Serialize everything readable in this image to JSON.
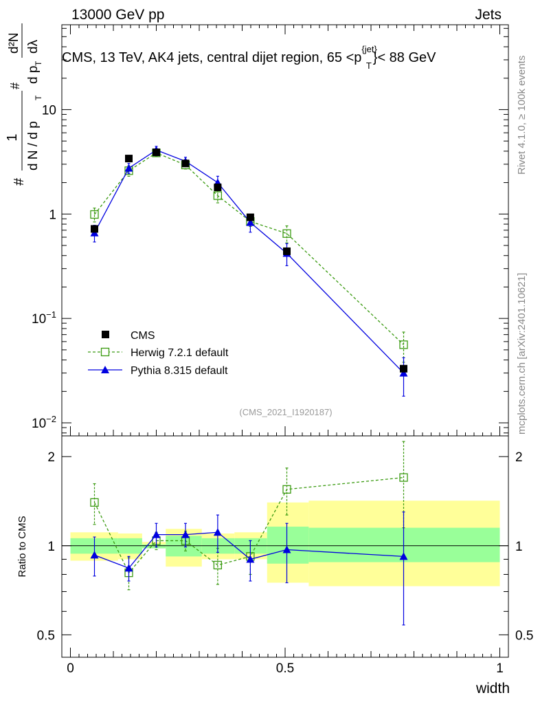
{
  "header": {
    "left": "13000 GeV pp",
    "right": "Jets"
  },
  "title": {
    "main": "CMS, 13 TeV, AK4 jets, central dijet region, 65 <p",
    "sup": "{jet}",
    "sub": "T",
    "end": "}< 88 GeV"
  },
  "side": {
    "rivet": "Rivet 4.1.0, ≥ 100k events",
    "mcplots": "mcplots.cern.ch [arXiv:2401.10621]"
  },
  "analysis_id": "(CMS_2021_I1920187)",
  "ylabel_main": {
    "a": "#",
    "b": "1",
    "c": "d N / d p",
    "d": "T",
    "e": "#",
    "f": "d p",
    "g": "T",
    "h": "dλ",
    "i": "d²N"
  },
  "ylabel_ratio": "Ratio to CMS",
  "xlabel": "width",
  "colors": {
    "cms": "#000000",
    "herwig": "#3a9a10",
    "pythia": "#0000e0",
    "band_yellow": "#ffff99",
    "band_green": "#99ff99"
  },
  "chart_data": {
    "type": "scatter",
    "x_range": [
      -0.02,
      1.02
    ],
    "main_ylim": [
      0.0075,
      65
    ],
    "ratio_ylim": [
      0.42,
      2.35
    ],
    "main_ticks": [
      {
        "v": 10,
        "base": "10",
        "exp": ""
      },
      {
        "v": 1,
        "base": "1",
        "exp": ""
      },
      {
        "v": 0.1,
        "base": "10",
        "exp": "−1"
      },
      {
        "v": 0.01,
        "base": "10",
        "exp": "−2"
      }
    ],
    "ratio_ticks": [
      {
        "v": 2,
        "label": "2"
      },
      {
        "v": 1,
        "label": "1"
      },
      {
        "v": 0.5,
        "label": "0.5"
      }
    ],
    "x_ticks": [
      {
        "v": 0,
        "label": "0"
      },
      {
        "v": 0.5,
        "label": "0.5"
      },
      {
        "v": 1,
        "label": "1"
      }
    ],
    "bins": [
      {
        "lo": 0.0,
        "hi": 0.111
      },
      {
        "lo": 0.111,
        "hi": 0.167
      },
      {
        "lo": 0.167,
        "hi": 0.222
      },
      {
        "lo": 0.222,
        "hi": 0.306
      },
      {
        "lo": 0.306,
        "hi": 0.382
      },
      {
        "lo": 0.382,
        "hi": 0.458
      },
      {
        "lo": 0.458,
        "hi": 0.555
      },
      {
        "lo": 0.555,
        "hi": 1.0
      }
    ],
    "series": [
      {
        "name": "CMS",
        "legend": "CMS",
        "style": "data",
        "x": [
          0.056,
          0.136,
          0.2,
          0.268,
          0.343,
          0.419,
          0.504,
          0.776
        ],
        "y": [
          0.72,
          3.4,
          3.9,
          3.05,
          1.8,
          0.93,
          0.44,
          0.033
        ],
        "err": [
          0.0,
          0.0,
          0.0,
          0.0,
          0.0,
          0.0,
          0.0,
          0.0
        ]
      },
      {
        "name": "Herwig",
        "legend": "Herwig 7.2.1 default",
        "style": "herwig",
        "x": [
          0.056,
          0.136,
          0.2,
          0.268,
          0.343,
          0.419,
          0.504,
          0.776
        ],
        "y": [
          0.99,
          2.6,
          3.85,
          2.95,
          1.5,
          0.85,
          0.65,
          0.056
        ],
        "err": [
          0.15,
          0.3,
          0.25,
          0.25,
          0.22,
          0.09,
          0.12,
          0.018
        ],
        "ratio": [
          1.4,
          0.81,
          1.04,
          1.04,
          0.86,
          0.92,
          1.55,
          1.7
        ],
        "ratio_err": [
          0.22,
          0.1,
          0.07,
          0.08,
          0.12,
          0.12,
          0.28,
          0.55
        ]
      },
      {
        "name": "Pythia",
        "legend": "Pythia 8.315 default",
        "style": "pythia",
        "x": [
          0.056,
          0.136,
          0.2,
          0.268,
          0.343,
          0.419,
          0.504,
          0.776
        ],
        "y": [
          0.66,
          2.75,
          4.1,
          3.2,
          2.0,
          0.83,
          0.42,
          0.03
        ],
        "err": [
          0.12,
          0.3,
          0.35,
          0.3,
          0.3,
          0.16,
          0.1,
          0.012
        ],
        "ratio": [
          0.93,
          0.84,
          1.09,
          1.09,
          1.11,
          0.9,
          0.97,
          0.92
        ],
        "ratio_err": [
          0.14,
          0.08,
          0.1,
          0.1,
          0.16,
          0.14,
          0.22,
          0.38
        ]
      }
    ],
    "uncertainty_bands": {
      "yellow": [
        [
          0.89,
          1.11
        ],
        [
          0.9,
          1.1
        ],
        [
          0.98,
          1.03
        ],
        [
          0.85,
          1.14
        ],
        [
          0.9,
          1.1
        ],
        [
          0.9,
          1.11
        ],
        [
          0.75,
          1.4
        ],
        [
          0.73,
          1.42
        ]
      ],
      "green": [
        [
          0.94,
          1.06
        ],
        [
          0.94,
          1.06
        ],
        [
          0.98,
          1.01
        ],
        [
          0.92,
          1.08
        ],
        [
          0.94,
          1.06
        ],
        [
          0.94,
          1.06
        ],
        [
          0.87,
          1.16
        ],
        [
          0.88,
          1.15
        ]
      ]
    }
  }
}
